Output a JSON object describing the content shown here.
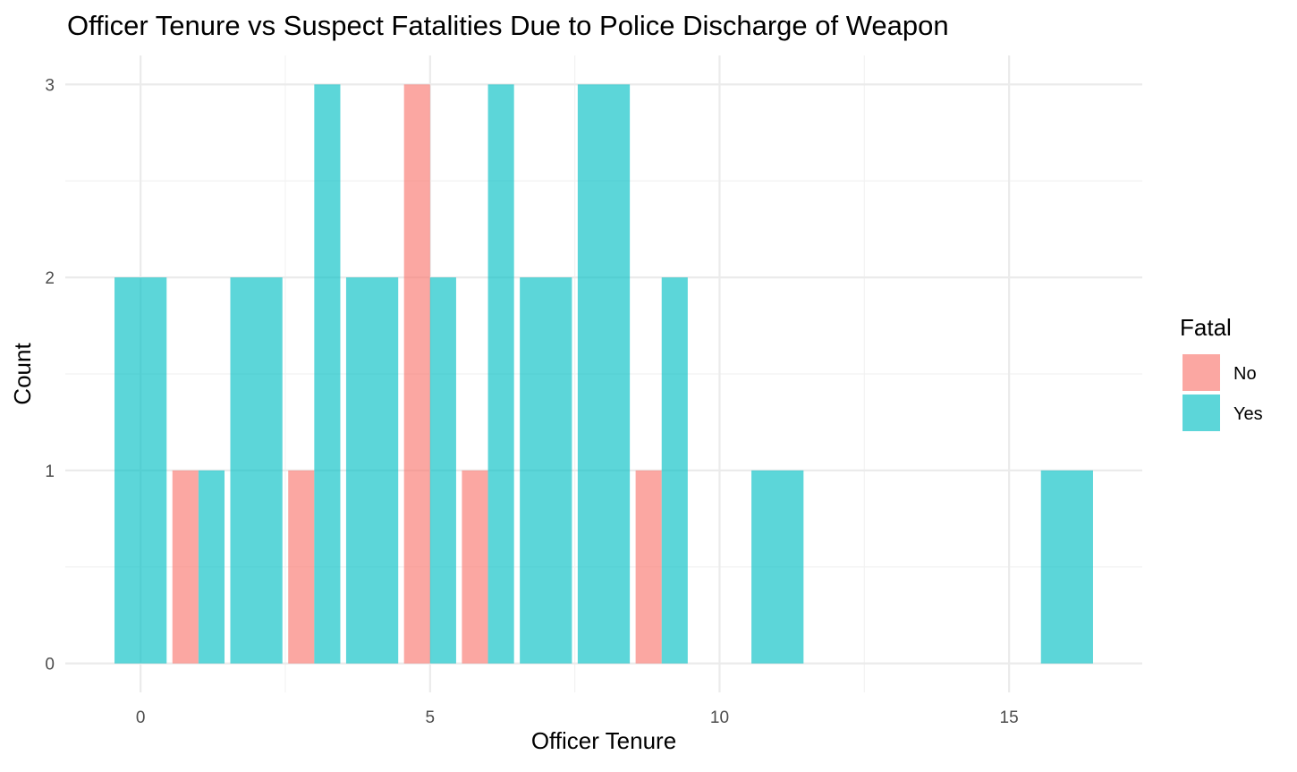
{
  "chart_data": {
    "type": "bar",
    "title": "Officer Tenure vs Suspect Fatalities Due to Police Discharge of Weapon",
    "xlabel": "Officer Tenure",
    "ylabel": "Count",
    "xlim": [
      -1.3,
      17.3
    ],
    "ylim": [
      -0.15,
      3.15
    ],
    "x_ticks": [
      0,
      5,
      10,
      15
    ],
    "x_tick_labels": [
      "0",
      "5",
      "10",
      "15"
    ],
    "y_ticks": [
      0,
      1,
      2,
      3
    ],
    "y_tick_labels": [
      "0",
      "1",
      "2",
      "3"
    ],
    "grid": true,
    "legend": {
      "title": "Fatal",
      "position": "right",
      "entries": [
        {
          "label": "No",
          "color": "#F8766D"
        },
        {
          "label": "Yes",
          "color": "#00BFC4"
        }
      ]
    },
    "bar_opacity": 0.64,
    "series": [
      {
        "name": "No",
        "color": "#F8766D",
        "data": [
          {
            "x": 1,
            "value": 1
          },
          {
            "x": 3,
            "value": 1
          },
          {
            "x": 5,
            "value": 3
          },
          {
            "x": 6,
            "value": 1
          },
          {
            "x": 9,
            "value": 1
          }
        ]
      },
      {
        "name": "Yes",
        "color": "#00BFC4",
        "data": [
          {
            "x": 0,
            "value": 2
          },
          {
            "x": 1,
            "value": 1
          },
          {
            "x": 2,
            "value": 2
          },
          {
            "x": 3,
            "value": 3
          },
          {
            "x": 4,
            "value": 2
          },
          {
            "x": 5,
            "value": 2
          },
          {
            "x": 6,
            "value": 3
          },
          {
            "x": 7,
            "value": 2
          },
          {
            "x": 8,
            "value": 3
          },
          {
            "x": 9,
            "value": 2
          },
          {
            "x": 11,
            "value": 1
          },
          {
            "x": 16,
            "value": 1
          }
        ]
      }
    ]
  }
}
